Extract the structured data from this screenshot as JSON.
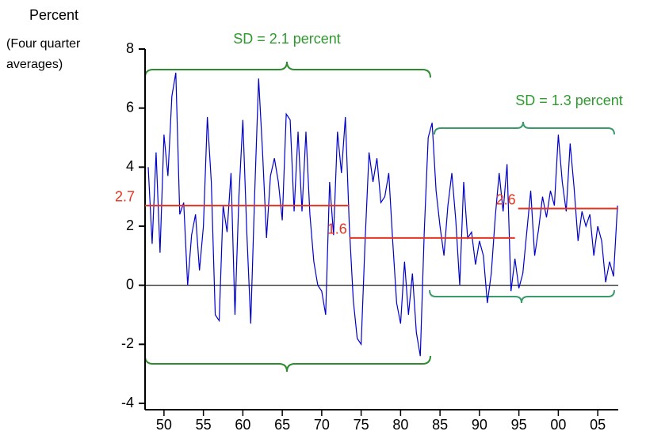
{
  "chart_data": {
    "type": "line",
    "y_label_lines": [
      "Percent",
      "(Four quarter",
      "averages)"
    ],
    "annotations": [
      "SD = 2.1 percent",
      "SD = 1.3 percent"
    ],
    "xlim": [
      1947.6,
      2007.6
    ],
    "xticks": [
      {
        "value": 1950,
        "label": "50"
      },
      {
        "value": 1955,
        "label": "55"
      },
      {
        "value": 1960,
        "label": "60"
      },
      {
        "value": 1965,
        "label": "65"
      },
      {
        "value": 1970,
        "label": "70"
      },
      {
        "value": 1975,
        "label": "75"
      },
      {
        "value": 1980,
        "label": "80"
      },
      {
        "value": 1985,
        "label": "85"
      },
      {
        "value": 1990,
        "label": "90"
      },
      {
        "value": 1995,
        "label": "95"
      },
      {
        "value": 2000,
        "label": "00"
      },
      {
        "value": 2005,
        "label": "05"
      }
    ],
    "ylim": [
      -4,
      8
    ],
    "yticks": [
      -4,
      -2,
      0,
      2,
      4,
      6,
      8
    ],
    "zero_line": true,
    "x": [
      1948.0,
      1948.5,
      1949.0,
      1949.5,
      1950.0,
      1950.5,
      1951.0,
      1951.5,
      1952.0,
      1952.5,
      1953.0,
      1953.5,
      1954.0,
      1954.5,
      1955.0,
      1955.5,
      1956.0,
      1956.5,
      1957.0,
      1957.5,
      1958.0,
      1958.5,
      1959.0,
      1959.5,
      1960.0,
      1960.5,
      1961.0,
      1961.5,
      1962.0,
      1962.5,
      1963.0,
      1963.5,
      1964.0,
      1964.5,
      1965.0,
      1965.5,
      1966.0,
      1966.5,
      1967.0,
      1967.5,
      1968.0,
      1968.5,
      1969.0,
      1969.5,
      1970.0,
      1970.5,
      1971.0,
      1971.5,
      1972.0,
      1972.5,
      1973.0,
      1973.5,
      1974.0,
      1974.5,
      1975.0,
      1975.5,
      1976.0,
      1976.5,
      1977.0,
      1977.5,
      1978.0,
      1978.5,
      1979.0,
      1979.5,
      1980.0,
      1980.5,
      1981.0,
      1981.5,
      1982.0,
      1982.5,
      1983.0,
      1983.5,
      1984.0,
      1984.5,
      1985.0,
      1985.5,
      1986.0,
      1986.5,
      1987.0,
      1987.5,
      1988.0,
      1988.5,
      1989.0,
      1989.5,
      1990.0,
      1990.5,
      1991.0,
      1991.5,
      1992.0,
      1992.5,
      1993.0,
      1993.5,
      1994.0,
      1994.5,
      1995.0,
      1995.5,
      1996.0,
      1996.5,
      1997.0,
      1997.5,
      1998.0,
      1998.5,
      1999.0,
      1999.5,
      2000.0,
      2000.5,
      2001.0,
      2001.5,
      2002.0,
      2002.5,
      2003.0,
      2003.5,
      2004.0,
      2004.5,
      2005.0,
      2005.5,
      2006.0,
      2006.5,
      2007.0,
      2007.5
    ],
    "series": [
      {
        "color": "#0000cc",
        "values": [
          4.0,
          1.4,
          4.5,
          1.1,
          5.1,
          3.7,
          6.4,
          7.2,
          2.4,
          2.8,
          0.0,
          1.7,
          2.4,
          0.5,
          2.0,
          5.7,
          3.5,
          -1.0,
          -1.2,
          2.7,
          1.8,
          3.8,
          -1.0,
          3.0,
          5.6,
          1.8,
          -1.3,
          3.1,
          7.0,
          4.5,
          1.6,
          3.7,
          4.3,
          3.5,
          2.2,
          5.8,
          5.6,
          2.5,
          5.2,
          2.5,
          5.2,
          2.4,
          0.8,
          0.0,
          -0.2,
          -1.0,
          3.5,
          1.7,
          5.2,
          3.8,
          5.7,
          2.0,
          -0.5,
          -1.8,
          -2.0,
          1.5,
          4.5,
          3.5,
          4.3,
          2.8,
          3.0,
          3.8,
          1.5,
          -0.6,
          -1.3,
          0.8,
          -1.0,
          0.4,
          -1.6,
          -2.4,
          1.8,
          5.0,
          5.5,
          3.2,
          2.0,
          1.0,
          2.7,
          3.8,
          2.2,
          0.0,
          3.5,
          1.6,
          1.8,
          0.7,
          1.5,
          1.0,
          -0.6,
          0.4,
          2.3,
          3.8,
          2.5,
          4.1,
          -0.2,
          0.9,
          -0.1,
          0.4,
          1.8,
          3.2,
          1.0,
          1.9,
          3.0,
          2.3,
          3.2,
          2.7,
          5.1,
          3.5,
          2.5,
          4.8,
          3.3,
          1.5,
          2.5,
          2.0,
          2.4,
          1.0,
          2.0,
          1.5,
          0.1,
          0.8,
          0.3,
          2.7
        ]
      }
    ],
    "means": [
      {
        "value": 2.7,
        "start": 1947.6,
        "end": 1973.5
      },
      {
        "value": 1.6,
        "start": 1973.5,
        "end": 1994.5
      },
      {
        "value": 2.6,
        "start": 1994.9,
        "end": 2007.6
      }
    ],
    "mean_color": "#e8321f"
  }
}
